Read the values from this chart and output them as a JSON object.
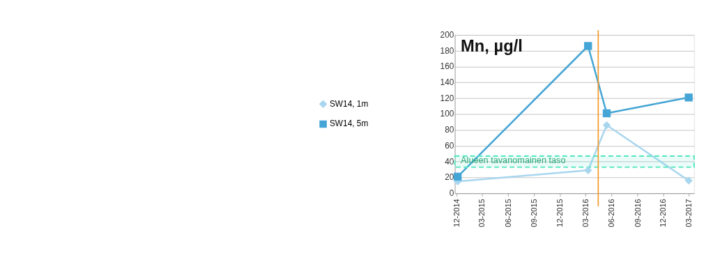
{
  "chart_data": {
    "type": "line",
    "title": "Mn, µg/l",
    "xlim": [
      "2014-11-25",
      "2017-03-20"
    ],
    "xticks": [
      {
        "value": "2014-12-01",
        "label": "12-2014"
      },
      {
        "value": "2015-03-01",
        "label": "03-2015"
      },
      {
        "value": "2015-06-01",
        "label": "06-2015"
      },
      {
        "value": "2015-09-01",
        "label": "09-2015"
      },
      {
        "value": "2015-12-01",
        "label": "12-2015"
      },
      {
        "value": "2016-03-01",
        "label": "03-2016"
      },
      {
        "value": "2016-06-01",
        "label": "06-2016"
      },
      {
        "value": "2016-09-01",
        "label": "09-2016"
      },
      {
        "value": "2016-12-01",
        "label": "12-2016"
      },
      {
        "value": "2017-03-01",
        "label": "03-2017"
      }
    ],
    "ylim": [
      0,
      200
    ],
    "yticks": [
      0,
      20,
      40,
      60,
      80,
      100,
      120,
      140,
      160,
      180,
      200
    ],
    "grid": "y",
    "legend": "left",
    "series": [
      {
        "name": "SW14, 1m",
        "color": "#a9d6ef",
        "marker": "diamond",
        "x": [
          "2014-12-05",
          "2016-03-10",
          "2016-05-15",
          "2017-03-01"
        ],
        "values": [
          15,
          29,
          86,
          16
        ]
      },
      {
        "name": "SW14, 5m",
        "color": "#45a5d6",
        "marker": "square",
        "x": [
          "2014-12-05",
          "2016-03-10",
          "2016-05-15",
          "2017-03-01"
        ],
        "values": [
          21,
          186,
          101,
          121
        ]
      }
    ],
    "ref_lines": [
      {
        "axis": "x",
        "value": "2016-04-15",
        "color": "#f39a2a"
      }
    ],
    "bands": [
      {
        "axis": "y",
        "from": 33,
        "to": 47,
        "label": "Alueen tavanomainen taso",
        "color": "#5ee8c2"
      }
    ]
  }
}
